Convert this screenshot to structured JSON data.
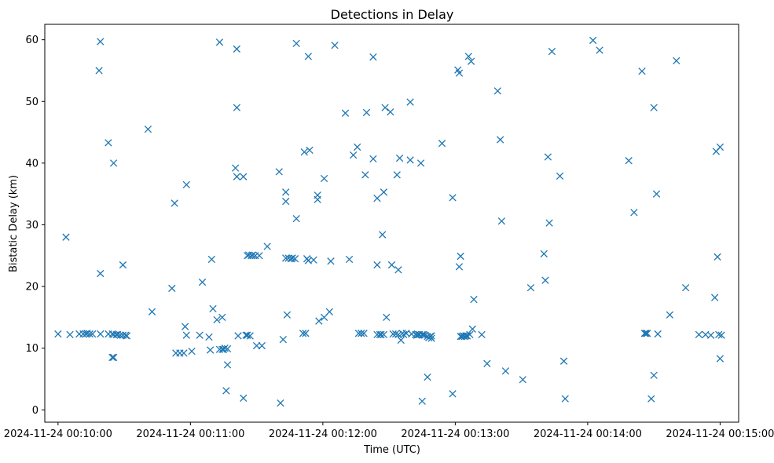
{
  "chart_data": {
    "type": "scatter",
    "title": "Detections in Delay",
    "xlabel": "Time (UTC)",
    "ylabel": "Bistatic Delay (km)",
    "marker": "x",
    "color": "#1f77b4",
    "x_unit": "minutes after 2024-11-24 00:10:00",
    "xlim": [
      -0.1,
      5.14
    ],
    "ylim": [
      -2,
      62.5
    ],
    "xticks": [
      0,
      1,
      2,
      3,
      4,
      5
    ],
    "xtick_labels": [
      "2024-11-24 00:10:00",
      "2024-11-24 00:11:00",
      "2024-11-24 00:12:00",
      "2024-11-24 00:13:00",
      "2024-11-24 00:14:00",
      "2024-11-24 00:15:00"
    ],
    "yticks": [
      0,
      10,
      20,
      30,
      40,
      50,
      60
    ],
    "ytick_labels": [
      "0",
      "10",
      "20",
      "30",
      "40",
      "50",
      "60"
    ],
    "points": [
      [
        0.0,
        12.3
      ],
      [
        0.06,
        28.0
      ],
      [
        0.09,
        12.2
      ],
      [
        0.16,
        12.3
      ],
      [
        0.19,
        12.3
      ],
      [
        0.21,
        12.3
      ],
      [
        0.22,
        12.4
      ],
      [
        0.24,
        12.3
      ],
      [
        0.26,
        12.3
      ],
      [
        0.31,
        55.0
      ],
      [
        0.32,
        59.7
      ],
      [
        0.32,
        22.1
      ],
      [
        0.32,
        12.3
      ],
      [
        0.38,
        43.3
      ],
      [
        0.38,
        12.3
      ],
      [
        0.41,
        12.3
      ],
      [
        0.41,
        8.5
      ],
      [
        0.42,
        8.5
      ],
      [
        0.42,
        40.0
      ],
      [
        0.42,
        12.2
      ],
      [
        0.44,
        12.2
      ],
      [
        0.45,
        12.2
      ],
      [
        0.47,
        12.1
      ],
      [
        0.49,
        12.1
      ],
      [
        0.49,
        23.5
      ],
      [
        0.51,
        12.1
      ],
      [
        0.52,
        12.0
      ],
      [
        0.68,
        45.5
      ],
      [
        0.71,
        15.9
      ],
      [
        0.86,
        19.7
      ],
      [
        0.88,
        33.5
      ],
      [
        0.89,
        9.2
      ],
      [
        0.92,
        9.2
      ],
      [
        0.95,
        9.2
      ],
      [
        0.96,
        13.5
      ],
      [
        0.97,
        12.1
      ],
      [
        0.97,
        36.5
      ],
      [
        1.01,
        9.5
      ],
      [
        1.07,
        12.1
      ],
      [
        1.09,
        20.7
      ],
      [
        1.14,
        11.8
      ],
      [
        1.15,
        9.7
      ],
      [
        1.16,
        24.4
      ],
      [
        1.17,
        16.4
      ],
      [
        1.2,
        14.6
      ],
      [
        1.22,
        59.6
      ],
      [
        1.22,
        9.8
      ],
      [
        1.24,
        15.0
      ],
      [
        1.24,
        9.8
      ],
      [
        1.25,
        9.8
      ],
      [
        1.26,
        10.0
      ],
      [
        1.27,
        3.1
      ],
      [
        1.28,
        7.3
      ],
      [
        1.28,
        9.9
      ],
      [
        1.34,
        39.2
      ],
      [
        1.35,
        37.8
      ],
      [
        1.35,
        58.5
      ],
      [
        1.35,
        49.0
      ],
      [
        1.36,
        12.0
      ],
      [
        1.4,
        37.8
      ],
      [
        1.4,
        1.9
      ],
      [
        1.42,
        12.1
      ],
      [
        1.43,
        12.1
      ],
      [
        1.43,
        25.0
      ],
      [
        1.44,
        25.1
      ],
      [
        1.45,
        12.0
      ],
      [
        1.46,
        25.0
      ],
      [
        1.47,
        25.1
      ],
      [
        1.49,
        25.0
      ],
      [
        1.5,
        10.4
      ],
      [
        1.52,
        25.0
      ],
      [
        1.54,
        10.4
      ],
      [
        1.58,
        26.5
      ],
      [
        1.67,
        38.6
      ],
      [
        1.68,
        1.1
      ],
      [
        1.7,
        11.4
      ],
      [
        1.72,
        35.3
      ],
      [
        1.72,
        33.8
      ],
      [
        1.72,
        24.6
      ],
      [
        1.73,
        15.4
      ],
      [
        1.74,
        24.6
      ],
      [
        1.76,
        24.5
      ],
      [
        1.77,
        24.6
      ],
      [
        1.79,
        24.5
      ],
      [
        1.8,
        59.4
      ],
      [
        1.8,
        31.0
      ],
      [
        1.85,
        12.4
      ],
      [
        1.86,
        41.8
      ],
      [
        1.87,
        12.4
      ],
      [
        1.88,
        24.5
      ],
      [
        1.89,
        57.3
      ],
      [
        1.89,
        24.2
      ],
      [
        1.9,
        42.1
      ],
      [
        1.93,
        24.3
      ],
      [
        1.96,
        34.8
      ],
      [
        1.96,
        34.1
      ],
      [
        1.97,
        14.4
      ],
      [
        2.01,
        15.0
      ],
      [
        2.01,
        37.5
      ],
      [
        2.05,
        15.9
      ],
      [
        2.06,
        24.1
      ],
      [
        2.09,
        59.1
      ],
      [
        2.17,
        48.1
      ],
      [
        2.2,
        24.4
      ],
      [
        2.23,
        41.3
      ],
      [
        2.26,
        42.6
      ],
      [
        2.27,
        12.4
      ],
      [
        2.29,
        12.4
      ],
      [
        2.31,
        12.4
      ],
      [
        2.32,
        38.1
      ],
      [
        2.33,
        48.2
      ],
      [
        2.38,
        57.2
      ],
      [
        2.38,
        40.7
      ],
      [
        2.41,
        34.3
      ],
      [
        2.41,
        23.5
      ],
      [
        2.41,
        12.2
      ],
      [
        2.43,
        12.2
      ],
      [
        2.44,
        12.2
      ],
      [
        2.45,
        28.4
      ],
      [
        2.46,
        35.3
      ],
      [
        2.46,
        12.2
      ],
      [
        2.47,
        49.0
      ],
      [
        2.48,
        15.0
      ],
      [
        2.51,
        48.3
      ],
      [
        2.52,
        23.5
      ],
      [
        2.53,
        12.3
      ],
      [
        2.55,
        12.3
      ],
      [
        2.56,
        38.1
      ],
      [
        2.57,
        12.2
      ],
      [
        2.57,
        22.7
      ],
      [
        2.58,
        40.8
      ],
      [
        2.59,
        11.3
      ],
      [
        2.6,
        12.4
      ],
      [
        2.61,
        12.2
      ],
      [
        2.63,
        12.4
      ],
      [
        2.66,
        40.5
      ],
      [
        2.66,
        49.9
      ],
      [
        2.67,
        12.3
      ],
      [
        2.7,
        12.2
      ],
      [
        2.71,
        12.1
      ],
      [
        2.72,
        12.2
      ],
      [
        2.73,
        12.2
      ],
      [
        2.74,
        40.0
      ],
      [
        2.75,
        12.2
      ],
      [
        2.75,
        1.4
      ],
      [
        2.76,
        12.2
      ],
      [
        2.77,
        12.1
      ],
      [
        2.79,
        11.9
      ],
      [
        2.79,
        5.3
      ],
      [
        2.8,
        11.7
      ],
      [
        2.81,
        11.9
      ],
      [
        2.82,
        11.6
      ],
      [
        2.82,
        12.0
      ],
      [
        2.9,
        43.2
      ],
      [
        2.98,
        2.6
      ],
      [
        2.98,
        34.4
      ],
      [
        3.02,
        55.1
      ],
      [
        3.03,
        54.6
      ],
      [
        3.03,
        23.2
      ],
      [
        3.04,
        24.9
      ],
      [
        3.04,
        11.9
      ],
      [
        3.05,
        11.9
      ],
      [
        3.06,
        12.0
      ],
      [
        3.07,
        11.9
      ],
      [
        3.08,
        12.0
      ],
      [
        3.09,
        12.0
      ],
      [
        3.1,
        57.3
      ],
      [
        3.11,
        12.2
      ],
      [
        3.12,
        56.5
      ],
      [
        3.13,
        13.1
      ],
      [
        3.14,
        17.9
      ],
      [
        3.2,
        12.2
      ],
      [
        3.24,
        7.5
      ],
      [
        3.32,
        51.7
      ],
      [
        3.34,
        43.8
      ],
      [
        3.35,
        30.6
      ],
      [
        3.38,
        6.3
      ],
      [
        3.51,
        4.9
      ],
      [
        3.57,
        19.8
      ],
      [
        3.67,
        25.3
      ],
      [
        3.68,
        21.0
      ],
      [
        3.7,
        41.0
      ],
      [
        3.71,
        30.3
      ],
      [
        3.73,
        58.1
      ],
      [
        3.79,
        37.9
      ],
      [
        3.82,
        7.9
      ],
      [
        3.83,
        1.8
      ],
      [
        4.04,
        59.9
      ],
      [
        4.09,
        58.3
      ],
      [
        4.31,
        40.4
      ],
      [
        4.35,
        32.0
      ],
      [
        4.41,
        54.9
      ],
      [
        4.43,
        12.4
      ],
      [
        4.44,
        12.4
      ],
      [
        4.45,
        12.4
      ],
      [
        4.48,
        1.8
      ],
      [
        4.5,
        5.6
      ],
      [
        4.5,
        49.0
      ],
      [
        4.52,
        35.0
      ],
      [
        4.53,
        12.3
      ],
      [
        4.62,
        15.4
      ],
      [
        4.67,
        56.6
      ],
      [
        4.74,
        19.8
      ],
      [
        4.84,
        12.2
      ],
      [
        4.89,
        12.2
      ],
      [
        4.93,
        12.1
      ],
      [
        4.96,
        18.2
      ],
      [
        4.97,
        41.9
      ],
      [
        4.98,
        24.8
      ],
      [
        4.99,
        12.2
      ],
      [
        5.0,
        42.6
      ],
      [
        5.0,
        8.3
      ],
      [
        5.01,
        12.1
      ]
    ]
  }
}
